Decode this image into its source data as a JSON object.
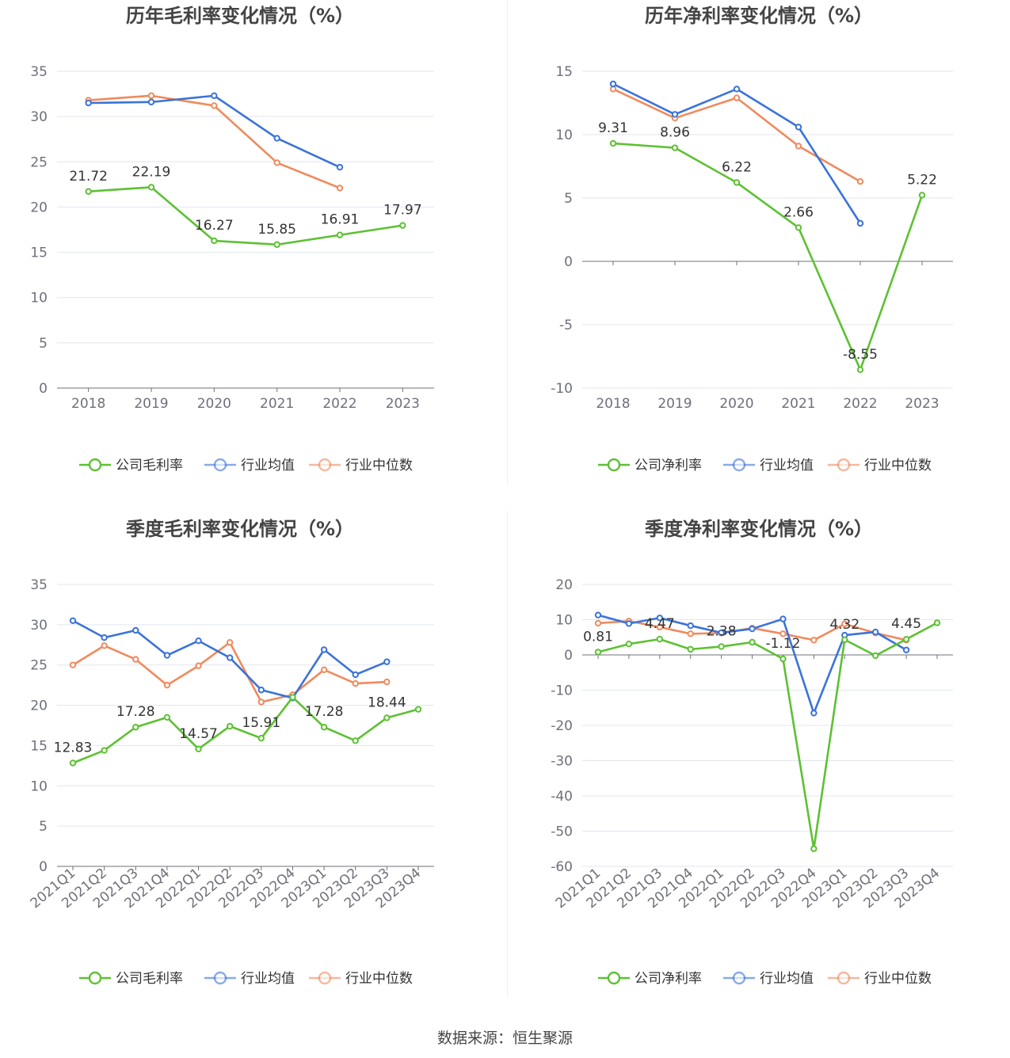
{
  "colors": {
    "company": "#5dc133",
    "avg": "#3b73d9",
    "median": "#f08a5d"
  },
  "legend": {
    "gross": [
      "公司毛利率",
      "行业均值",
      "行业中位数"
    ],
    "net": [
      "公司净利率",
      "行业均值",
      "行业中位数"
    ]
  },
  "source": "数据来源：恒生聚源",
  "chart_data": [
    {
      "type": "line",
      "title": "历年毛利率变化情况（%）",
      "categories": [
        "2018",
        "2019",
        "2020",
        "2021",
        "2022",
        "2023"
      ],
      "ylim": [
        0,
        35
      ],
      "yticks": [
        0,
        5,
        10,
        15,
        20,
        25,
        30,
        35
      ],
      "legend_position": "bottom",
      "series": [
        {
          "name": "公司毛利率",
          "values": [
            21.72,
            22.19,
            16.27,
            15.85,
            16.91,
            17.97
          ],
          "labels": [
            "21.72",
            "22.19",
            "16.27",
            "15.85",
            "16.91",
            "17.97"
          ]
        },
        {
          "name": "行业均值",
          "values": [
            31.5,
            31.6,
            32.3,
            27.6,
            24.4,
            null
          ]
        },
        {
          "name": "行业中位数",
          "values": [
            31.8,
            32.3,
            31.2,
            24.9,
            22.1,
            null
          ]
        }
      ]
    },
    {
      "type": "line",
      "title": "历年净利率变化情况（%）",
      "categories": [
        "2018",
        "2019",
        "2020",
        "2021",
        "2022",
        "2023"
      ],
      "ylim": [
        -10,
        15
      ],
      "yticks": [
        -10,
        -5,
        0,
        5,
        10,
        15
      ],
      "legend_position": "bottom",
      "series": [
        {
          "name": "公司净利率",
          "values": [
            9.31,
            8.96,
            6.22,
            2.66,
            -8.55,
            5.22
          ],
          "labels": [
            "9.31",
            "8.96",
            "6.22",
            "2.66",
            "-8.55",
            "5.22"
          ]
        },
        {
          "name": "行业均值",
          "values": [
            14.0,
            11.6,
            13.6,
            10.6,
            3.0,
            null
          ]
        },
        {
          "name": "行业中位数",
          "values": [
            13.6,
            11.3,
            12.9,
            9.1,
            6.3,
            null
          ]
        }
      ]
    },
    {
      "type": "line",
      "title": "季度毛利率变化情况（%）",
      "categories": [
        "2021Q1",
        "2021Q2",
        "2021Q3",
        "2021Q4",
        "2022Q1",
        "2022Q2",
        "2022Q3",
        "2022Q4",
        "2023Q1",
        "2023Q2",
        "2023Q3",
        "2023Q4"
      ],
      "ylim": [
        0,
        35
      ],
      "yticks": [
        0,
        5,
        10,
        15,
        20,
        25,
        30,
        35
      ],
      "legend_position": "bottom",
      "series": [
        {
          "name": "公司毛利率",
          "values": [
            12.83,
            14.4,
            17.28,
            18.5,
            14.57,
            17.4,
            15.91,
            21.0,
            17.28,
            15.6,
            18.44,
            19.5
          ],
          "labels": [
            "12.83",
            "",
            "17.28",
            "",
            "14.57",
            "",
            "15.91",
            "",
            "17.28",
            "",
            "18.44",
            ""
          ]
        },
        {
          "name": "行业均值",
          "values": [
            30.5,
            28.4,
            29.3,
            26.2,
            28.0,
            25.9,
            21.9,
            20.9,
            26.9,
            23.8,
            25.4,
            null
          ]
        },
        {
          "name": "行业中位数",
          "values": [
            25.0,
            27.4,
            25.7,
            22.5,
            24.9,
            27.8,
            20.4,
            21.3,
            24.4,
            22.7,
            22.9,
            null
          ]
        }
      ]
    },
    {
      "type": "line",
      "title": "季度净利率变化情况（%）",
      "categories": [
        "2021Q1",
        "2021Q2",
        "2021Q3",
        "2021Q4",
        "2022Q1",
        "2022Q2",
        "2022Q3",
        "2022Q4",
        "2023Q1",
        "2023Q2",
        "2023Q3",
        "2023Q4"
      ],
      "ylim": [
        -60,
        20
      ],
      "yticks": [
        -60,
        -50,
        -40,
        -30,
        -20,
        -10,
        0,
        10,
        20
      ],
      "legend_position": "bottom",
      "series": [
        {
          "name": "公司净利率",
          "values": [
            0.81,
            3.1,
            4.47,
            1.6,
            2.38,
            3.6,
            -1.12,
            -55.0,
            4.32,
            -0.2,
            4.45,
            9.1
          ],
          "labels": [
            "0.81",
            "",
            "4.47",
            "",
            "2.38",
            "",
            "-1.12",
            "",
            "4.32",
            "",
            "4.45",
            ""
          ]
        },
        {
          "name": "行业均值",
          "values": [
            11.3,
            8.9,
            10.5,
            8.3,
            6.3,
            7.4,
            10.2,
            -16.5,
            5.6,
            6.5,
            1.4,
            null
          ]
        },
        {
          "name": "行业中位数",
          "values": [
            9.0,
            9.6,
            7.9,
            6.0,
            6.2,
            7.6,
            6.0,
            4.2,
            8.8,
            6.2,
            4.2,
            null
          ]
        }
      ]
    }
  ]
}
